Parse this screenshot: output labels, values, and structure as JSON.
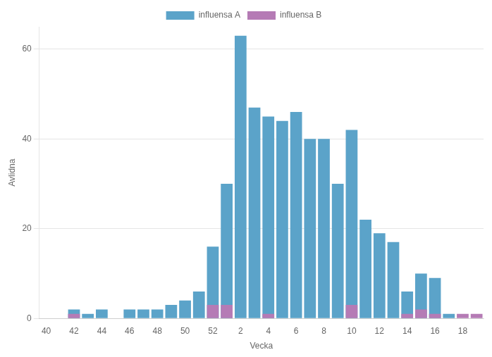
{
  "chart_data": {
    "type": "bar",
    "xlabel": "Vecka",
    "ylabel": "Avlidna",
    "categories": [
      "40",
      null,
      "42",
      null,
      "44",
      null,
      "46",
      null,
      "48",
      null,
      "50",
      null,
      "52",
      null,
      "2",
      null,
      "4",
      null,
      "6",
      null,
      "8",
      null,
      "10",
      null,
      "12",
      null,
      "14",
      null,
      "16",
      null,
      "18",
      null
    ],
    "series": [
      {
        "name": "influensa A",
        "color": "#5ba3c9",
        "values": [
          0,
          0,
          2,
          1,
          2,
          0,
          2,
          2,
          2,
          3,
          4,
          6,
          16,
          30,
          63,
          47,
          45,
          44,
          46,
          40,
          40,
          30,
          42,
          22,
          19,
          17,
          6,
          10,
          9,
          1,
          0,
          0
        ]
      },
      {
        "name": "influensa B",
        "color": "#b57bb5",
        "values": [
          0,
          0,
          1,
          0,
          0,
          0,
          0,
          0,
          0,
          0,
          0,
          0,
          3,
          3,
          0,
          0,
          1,
          0,
          0,
          0,
          0,
          0,
          3,
          0,
          0,
          0,
          1,
          2,
          1,
          0,
          1,
          1
        ]
      }
    ],
    "ylim": [
      0,
      65
    ],
    "yticks": [
      0,
      20,
      40,
      60
    ],
    "grid": true,
    "legend": "top"
  }
}
